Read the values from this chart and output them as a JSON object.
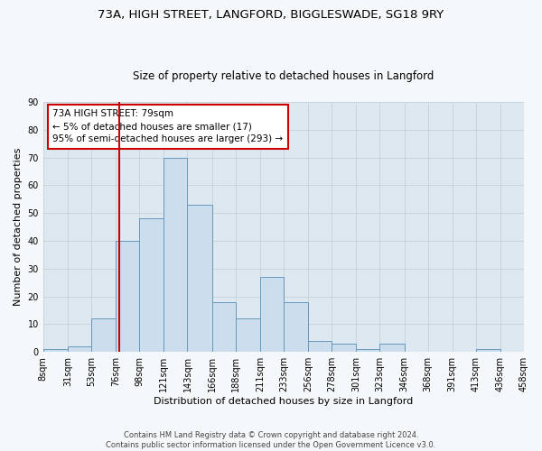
{
  "title_line1": "73A, HIGH STREET, LANGFORD, BIGGLESWADE, SG18 9RY",
  "title_line2": "Size of property relative to detached houses in Langford",
  "xlabel": "Distribution of detached houses by size in Langford",
  "ylabel": "Number of detached properties",
  "bin_edges": [
    8,
    31,
    53,
    76,
    98,
    121,
    143,
    166,
    188,
    211,
    233,
    256,
    278,
    301,
    323,
    346,
    368,
    391,
    413,
    436,
    458
  ],
  "bar_heights": [
    1,
    2,
    12,
    40,
    48,
    70,
    53,
    18,
    12,
    27,
    18,
    4,
    3,
    1,
    3,
    0,
    0,
    0,
    1,
    0
  ],
  "bar_facecolor": "#ccdded",
  "bar_edgecolor": "#6699bb",
  "bar_linewidth": 0.7,
  "grid_color": "#c0cdd8",
  "plot_background": "#dde8f0",
  "fig_background": "#f5f8fa",
  "property_size": 79,
  "red_line_color": "#cc0000",
  "annotation_line1": "73A HIGH STREET: 79sqm",
  "annotation_line2": "← 5% of detached houses are smaller (17)",
  "annotation_line3": "95% of semi-detached houses are larger (293) →",
  "annotation_box_edgecolor": "#cc0000",
  "annotation_box_facecolor": "#ffffff",
  "footer_text": "Contains HM Land Registry data © Crown copyright and database right 2024.\nContains public sector information licensed under the Open Government Licence v3.0.",
  "ylim": [
    0,
    90
  ],
  "yticks": [
    0,
    10,
    20,
    30,
    40,
    50,
    60,
    70,
    80,
    90
  ],
  "title1_fontsize": 9.5,
  "title2_fontsize": 8.5,
  "xlabel_fontsize": 8,
  "ylabel_fontsize": 8,
  "tick_fontsize": 7,
  "footer_fontsize": 6
}
